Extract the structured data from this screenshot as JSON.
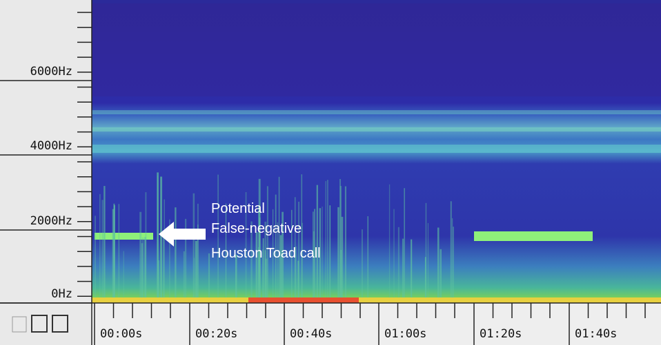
{
  "y_axis": {
    "labels": [
      "6000Hz",
      "4000Hz",
      "2000Hz",
      "0Hz"
    ]
  },
  "x_axis": {
    "labels": [
      "00:00s",
      "00:20s",
      "00:40s",
      "01:00s",
      "01:20s",
      "01:40s"
    ]
  },
  "annotation": {
    "lines": [
      "Potential",
      "False-negative",
      "Houston Toad call"
    ]
  }
}
